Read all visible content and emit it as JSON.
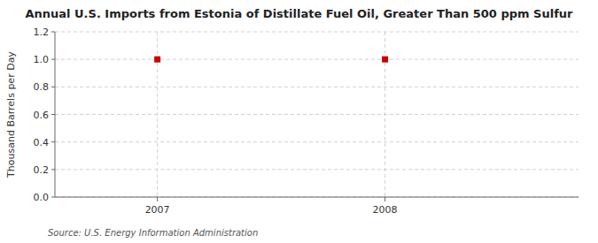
{
  "chart_data": {
    "type": "scatter",
    "title": "Annual U.S. Imports from Estonia of Distillate Fuel Oil, Greater Than 500 ppm Sulfur",
    "ylabel": "Thousand Barrels per Day",
    "source": "Source: U.S. Energy Information Administration",
    "x": [
      2007,
      2008
    ],
    "values": [
      1.0,
      1.0
    ],
    "color": "#cc0000",
    "marker": "square",
    "xlim": [
      2006.55,
      2008.85
    ],
    "xticks": [
      2007,
      2008
    ],
    "ylim": [
      0.0,
      1.2
    ],
    "yticks": [
      {
        "value": 0.0,
        "label": "0.0"
      },
      0.2,
      0.4,
      0.6,
      0.8,
      {
        "value": 1.0,
        "label": "1.0"
      },
      1.2
    ],
    "grid": true
  }
}
